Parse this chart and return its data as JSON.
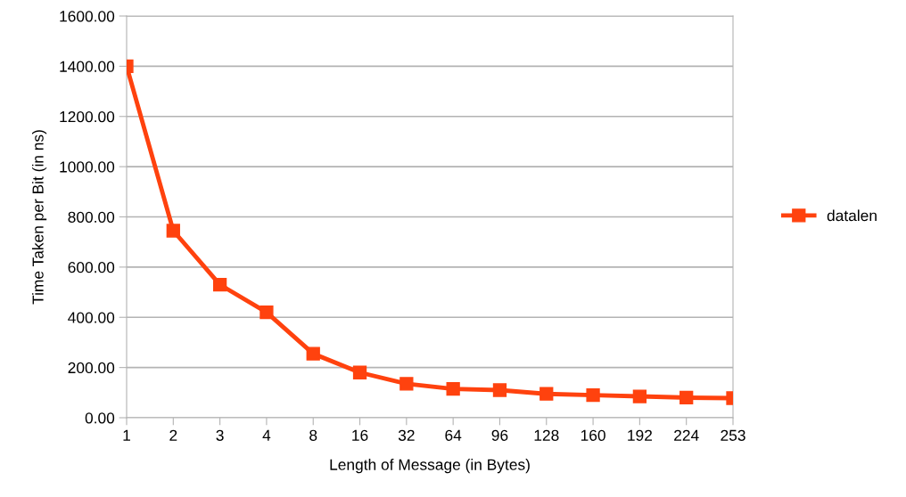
{
  "chart_data": {
    "type": "line",
    "xlabel": "Length of Message (in Bytes)",
    "ylabel": "Time Taken per Bit (in ns)",
    "categories": [
      "1",
      "2",
      "3",
      "4",
      "8",
      "16",
      "32",
      "64",
      "96",
      "128",
      "160",
      "192",
      "224",
      "253"
    ],
    "series": [
      {
        "name": "datalen",
        "color": "#ff420e",
        "values": [
          1400,
          745,
          530,
          420,
          255,
          180,
          135,
          115,
          110,
          95,
          90,
          85,
          80,
          78
        ]
      }
    ],
    "ylim": [
      0,
      1600
    ],
    "yticks": [
      {
        "value": 0,
        "label": "0.00"
      },
      {
        "value": 200,
        "label": "200.00"
      },
      {
        "value": 400,
        "label": "400.00"
      },
      {
        "value": 600,
        "label": "600.00"
      },
      {
        "value": 800,
        "label": "800.00"
      },
      {
        "value": 1000,
        "label": "1000.00"
      },
      {
        "value": 1200,
        "label": "1200.00"
      },
      {
        "value": 1400,
        "label": "1400.00"
      },
      {
        "value": 1600,
        "label": "1600.00"
      }
    ],
    "grid": "y",
    "legend": "right",
    "marker": "square",
    "line_style": "solid"
  }
}
